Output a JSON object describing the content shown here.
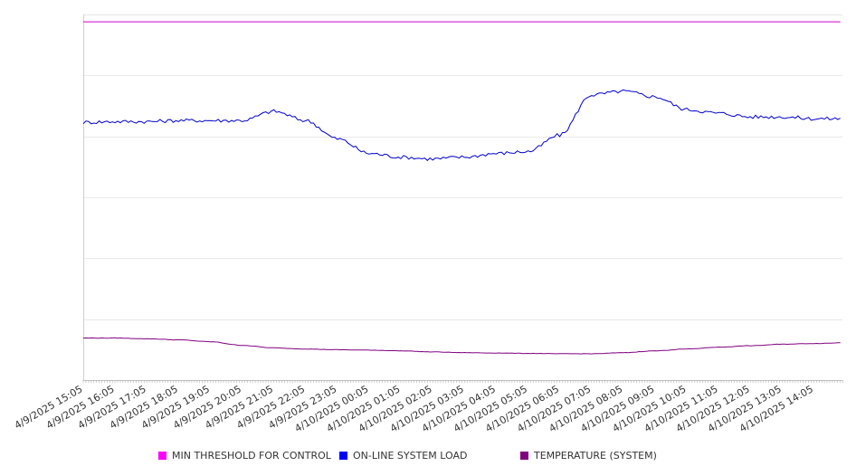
{
  "chart_data": {
    "type": "line",
    "title": "",
    "xlabel": "",
    "ylabel": "",
    "grid": true,
    "legend_position": "bottom",
    "y_tick_labels_shown": false,
    "y_gridlines": 6,
    "x_tick_labels": [
      "4/9/2025 15:05",
      "4/9/2025 16:05",
      "4/9/2025 17:05",
      "4/9/2025 18:05",
      "4/9/2025 19:05",
      "4/9/2025 20:05",
      "4/9/2025 21:05",
      "4/9/2025 22:05",
      "4/9/2025 23:05",
      "4/10/2025 00:05",
      "4/10/2025 01:05",
      "4/10/2025 02:05",
      "4/10/2025 03:05",
      "4/10/2025 04:05",
      "4/10/2025 05:05",
      "4/10/2025 06:05",
      "4/10/2025 07:05",
      "4/10/2025 08:05",
      "4/10/2025 09:05",
      "4/10/2025 10:05",
      "4/10/2025 11:05",
      "4/10/2025 12:05",
      "4/10/2025 13:05",
      "4/10/2025 14:05"
    ],
    "hours": [
      0,
      1,
      2,
      3,
      4,
      5,
      6,
      7,
      8,
      9,
      10,
      11,
      12,
      13,
      14,
      15,
      16,
      17,
      18,
      19,
      20,
      21,
      22,
      23,
      23.9
    ],
    "series": [
      {
        "name": "MIN THRESHOLD FOR CONTROL",
        "color": "#cc00cc",
        "values": [
          0.98,
          0.98,
          0.98,
          0.98,
          0.98,
          0.98,
          0.98,
          0.98,
          0.98,
          0.98,
          0.98,
          0.98,
          0.98,
          0.98,
          0.98,
          0.98,
          0.98,
          0.98,
          0.98,
          0.98,
          0.98,
          0.98,
          0.98,
          0.98,
          0.98
        ]
      },
      {
        "name": "ON-LINE SYSTEM LOAD",
        "color": "#0000cc",
        "values": [
          0.705,
          0.707,
          0.707,
          0.71,
          0.71,
          0.71,
          0.735,
          0.71,
          0.66,
          0.62,
          0.61,
          0.605,
          0.61,
          0.62,
          0.625,
          0.67,
          0.78,
          0.79,
          0.775,
          0.74,
          0.73,
          0.72,
          0.72,
          0.715,
          0.715
        ]
      },
      {
        "name": "TEMPERATURE (SYSTEM)",
        "color": "#800080",
        "values": [
          0.115,
          0.115,
          0.113,
          0.11,
          0.105,
          0.095,
          0.088,
          0.085,
          0.083,
          0.082,
          0.08,
          0.077,
          0.075,
          0.074,
          0.073,
          0.072,
          0.072,
          0.075,
          0.08,
          0.085,
          0.09,
          0.094,
          0.098,
          0.1,
          0.102
        ]
      }
    ]
  }
}
